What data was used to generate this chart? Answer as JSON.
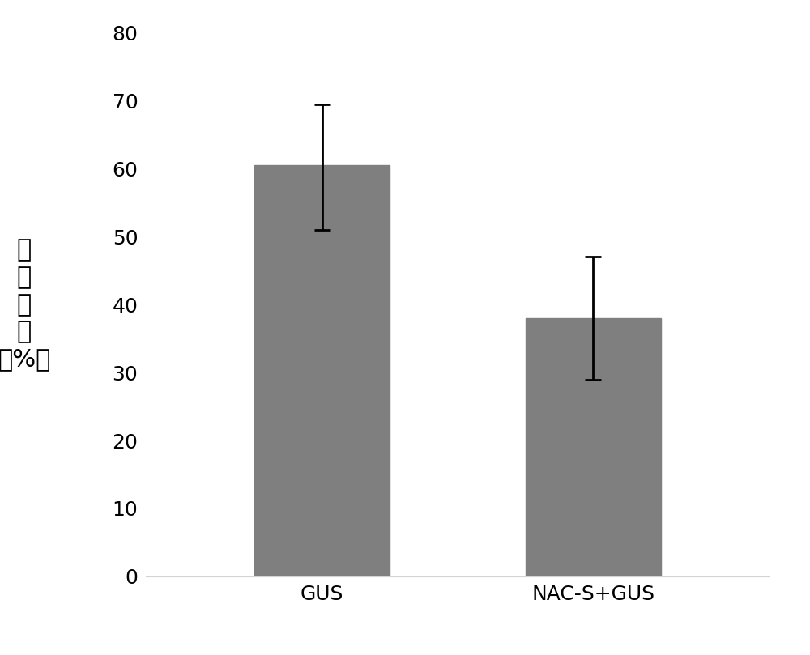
{
  "categories": [
    "GUS",
    "NAC-S+GUS"
  ],
  "values": [
    60.5,
    38.0
  ],
  "errors_upper": [
    9.0,
    9.0
  ],
  "errors_lower": [
    9.5,
    9.0
  ],
  "bar_color": "#7f7f7f",
  "bar_width": 0.5,
  "ylim": [
    0,
    80
  ],
  "yticks": [
    0,
    10,
    20,
    30,
    40,
    50,
    60,
    70,
    80
  ],
  "ylabel_chars": [
    "吸",
    "器",
    "指",
    "数",
    "（%）"
  ],
  "background_color": "#ffffff",
  "tick_fontsize": 18,
  "label_fontsize": 22,
  "capsize": 7,
  "elinewidth": 2,
  "capthick": 2
}
